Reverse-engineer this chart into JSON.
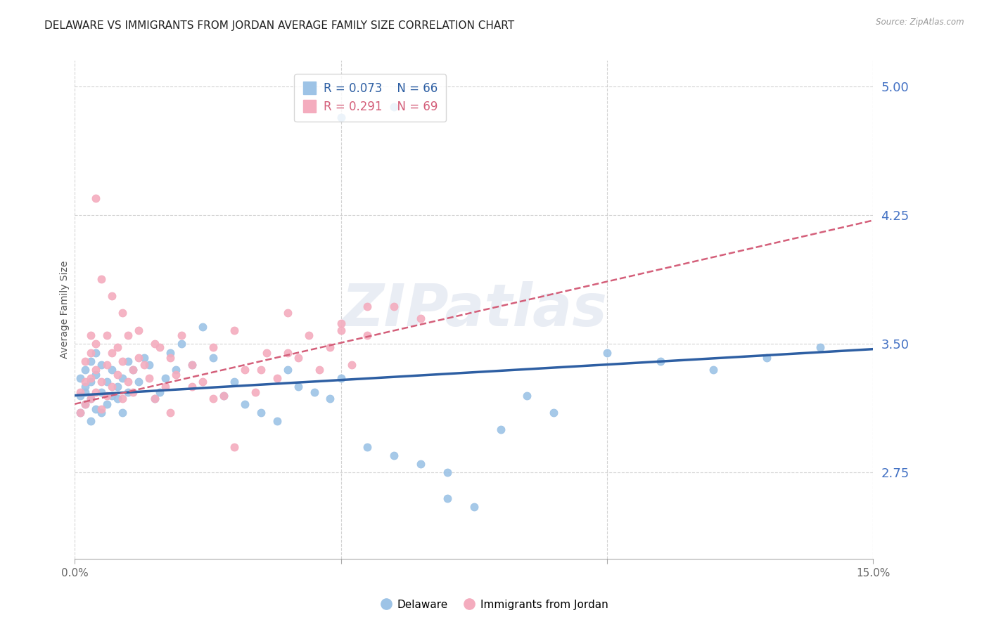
{
  "title": "DELAWARE VS IMMIGRANTS FROM JORDAN AVERAGE FAMILY SIZE CORRELATION CHART",
  "source": "Source: ZipAtlas.com",
  "ylabel": "Average Family Size",
  "xmin": 0.0,
  "xmax": 0.15,
  "ymin": 2.25,
  "ymax": 5.15,
  "yticks": [
    2.75,
    3.5,
    4.25,
    5.0
  ],
  "xticks": [
    0.0,
    0.05,
    0.1,
    0.15
  ],
  "xticklabels": [
    "0.0%",
    "",
    "",
    "15.0%"
  ],
  "background_color": "#ffffff",
  "grid_color": "#c8c8c8",
  "title_color": "#222222",
  "yaxis_label_color": "#4472c4",
  "delaware_color": "#9dc3e6",
  "jordan_color": "#f4acbe",
  "delaware_line_color": "#2e5fa3",
  "jordan_line_color": "#d45f7a",
  "legend_r1": "0.073",
  "legend_n1": "66",
  "legend_r2": "0.291",
  "legend_n2": "69",
  "legend_label1": "Delaware",
  "legend_label2": "Immigrants from Jordan",
  "delaware_trend_x": [
    0.0,
    0.15
  ],
  "delaware_trend_y": [
    3.2,
    3.47
  ],
  "jordan_trend_x": [
    0.0,
    0.15
  ],
  "jordan_trend_y": [
    3.15,
    4.22
  ],
  "watermark": "ZIPatlas",
  "delaware_scatter_x": [
    0.001,
    0.001,
    0.001,
    0.002,
    0.002,
    0.002,
    0.002,
    0.003,
    0.003,
    0.003,
    0.003,
    0.004,
    0.004,
    0.004,
    0.005,
    0.005,
    0.005,
    0.006,
    0.006,
    0.007,
    0.007,
    0.008,
    0.008,
    0.009,
    0.009,
    0.01,
    0.01,
    0.011,
    0.012,
    0.013,
    0.014,
    0.015,
    0.016,
    0.017,
    0.018,
    0.019,
    0.02,
    0.022,
    0.024,
    0.026,
    0.028,
    0.03,
    0.032,
    0.035,
    0.038,
    0.04,
    0.042,
    0.045,
    0.048,
    0.05,
    0.055,
    0.06,
    0.065,
    0.07,
    0.08,
    0.09,
    0.1,
    0.11,
    0.12,
    0.13,
    0.14,
    0.07,
    0.075,
    0.05,
    0.06,
    0.085
  ],
  "delaware_scatter_y": [
    3.2,
    3.1,
    3.3,
    3.25,
    3.15,
    3.35,
    3.22,
    3.18,
    3.28,
    3.4,
    3.05,
    3.32,
    3.12,
    3.45,
    3.22,
    3.1,
    3.38,
    3.28,
    3.15,
    3.2,
    3.35,
    3.25,
    3.18,
    3.3,
    3.1,
    3.22,
    3.4,
    3.35,
    3.28,
    3.42,
    3.38,
    3.18,
    3.22,
    3.3,
    3.45,
    3.35,
    3.5,
    3.38,
    3.6,
    3.42,
    3.2,
    3.28,
    3.15,
    3.1,
    3.05,
    3.35,
    3.25,
    3.22,
    3.18,
    3.3,
    2.9,
    2.85,
    2.8,
    2.75,
    3.0,
    3.1,
    3.45,
    3.4,
    3.35,
    3.42,
    3.48,
    2.6,
    2.55,
    4.82,
    4.88,
    3.2
  ],
  "jordan_scatter_x": [
    0.001,
    0.001,
    0.002,
    0.002,
    0.002,
    0.003,
    0.003,
    0.003,
    0.004,
    0.004,
    0.004,
    0.005,
    0.005,
    0.006,
    0.006,
    0.006,
    0.007,
    0.007,
    0.008,
    0.008,
    0.009,
    0.009,
    0.01,
    0.01,
    0.011,
    0.011,
    0.012,
    0.013,
    0.014,
    0.015,
    0.016,
    0.017,
    0.018,
    0.019,
    0.02,
    0.022,
    0.024,
    0.026,
    0.028,
    0.03,
    0.032,
    0.034,
    0.036,
    0.038,
    0.04,
    0.042,
    0.044,
    0.046,
    0.048,
    0.05,
    0.052,
    0.055,
    0.06,
    0.065,
    0.003,
    0.004,
    0.005,
    0.007,
    0.009,
    0.012,
    0.015,
    0.018,
    0.022,
    0.026,
    0.03,
    0.035,
    0.04,
    0.05,
    0.055
  ],
  "jordan_scatter_y": [
    3.22,
    3.1,
    3.28,
    3.15,
    3.4,
    3.18,
    3.3,
    3.45,
    3.22,
    3.35,
    3.5,
    3.28,
    3.12,
    3.38,
    3.2,
    3.55,
    3.45,
    3.25,
    3.32,
    3.48,
    3.18,
    3.4,
    3.28,
    3.55,
    3.35,
    3.22,
    3.42,
    3.38,
    3.3,
    3.18,
    3.48,
    3.25,
    3.42,
    3.32,
    3.55,
    3.38,
    3.28,
    3.48,
    3.2,
    3.58,
    3.35,
    3.22,
    3.45,
    3.3,
    3.68,
    3.42,
    3.55,
    3.35,
    3.48,
    3.62,
    3.38,
    3.55,
    3.72,
    3.65,
    3.55,
    4.35,
    3.88,
    3.78,
    3.68,
    3.58,
    3.5,
    3.1,
    3.25,
    3.18,
    2.9,
    3.35,
    3.45,
    3.58,
    3.72
  ]
}
